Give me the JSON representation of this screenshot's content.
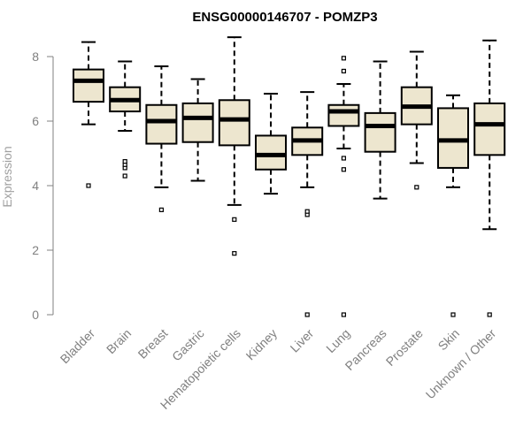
{
  "chart_data": {
    "type": "box",
    "title": "ENSG00000146707 - POMZP3",
    "xlabel": "",
    "ylabel": "Expression",
    "ylim": [
      0,
      8.6
    ],
    "yticks": [
      0,
      2,
      4,
      6,
      8
    ],
    "grid": false,
    "box_fill": "#ede6cf",
    "line_color": "#000000",
    "axis_color": "#808080",
    "categories": [
      "Bladder",
      "Brain",
      "Breast",
      "Gastric",
      "Hematopoietic cells",
      "Kidney",
      "Liver",
      "Lung",
      "Pancreas",
      "Prostate",
      "Skin",
      "Unknown / Other"
    ],
    "boxes": [
      {
        "label": "Bladder",
        "whisker_low": 5.9,
        "q1": 6.6,
        "median": 7.25,
        "q3": 7.6,
        "whisker_high": 8.45,
        "outliers": [
          4.0
        ]
      },
      {
        "label": "Brain",
        "whisker_low": 5.7,
        "q1": 6.3,
        "median": 6.65,
        "q3": 7.05,
        "whisker_high": 7.85,
        "outliers": [
          4.3,
          4.55,
          4.65,
          4.75
        ]
      },
      {
        "label": "Breast",
        "whisker_low": 3.95,
        "q1": 5.3,
        "median": 6.0,
        "q3": 6.5,
        "whisker_high": 7.7,
        "outliers": [
          3.25
        ]
      },
      {
        "label": "Gastric",
        "whisker_low": 4.15,
        "q1": 5.35,
        "median": 6.1,
        "q3": 6.55,
        "whisker_high": 7.3,
        "outliers": []
      },
      {
        "label": "Hematopoietic cells",
        "whisker_low": 3.4,
        "q1": 5.25,
        "median": 6.05,
        "q3": 6.65,
        "whisker_high": 8.6,
        "outliers": [
          2.95,
          1.9
        ]
      },
      {
        "label": "Kidney",
        "whisker_low": 3.75,
        "q1": 4.5,
        "median": 4.95,
        "q3": 5.55,
        "whisker_high": 6.85,
        "outliers": []
      },
      {
        "label": "Liver",
        "whisker_low": 3.95,
        "q1": 4.95,
        "median": 5.4,
        "q3": 5.8,
        "whisker_high": 6.9,
        "outliers": [
          3.1,
          3.2,
          0.0
        ]
      },
      {
        "label": "Lung",
        "whisker_low": 5.15,
        "q1": 5.85,
        "median": 6.3,
        "q3": 6.5,
        "whisker_high": 7.15,
        "outliers": [
          7.95,
          7.55,
          4.85,
          4.5,
          0.0
        ]
      },
      {
        "label": "Pancreas",
        "whisker_low": 3.6,
        "q1": 5.05,
        "median": 5.85,
        "q3": 6.25,
        "whisker_high": 7.85,
        "outliers": []
      },
      {
        "label": "Prostate",
        "whisker_low": 4.7,
        "q1": 5.9,
        "median": 6.45,
        "q3": 7.05,
        "whisker_high": 8.15,
        "outliers": [
          3.95
        ]
      },
      {
        "label": "Skin",
        "whisker_low": 3.95,
        "q1": 4.55,
        "median": 5.4,
        "q3": 6.4,
        "whisker_high": 6.8,
        "outliers": [
          0.0
        ]
      },
      {
        "label": "Unknown / Other",
        "whisker_low": 2.65,
        "q1": 4.95,
        "median": 5.9,
        "q3": 6.55,
        "whisker_high": 8.5,
        "outliers": [
          0.0
        ]
      }
    ]
  }
}
